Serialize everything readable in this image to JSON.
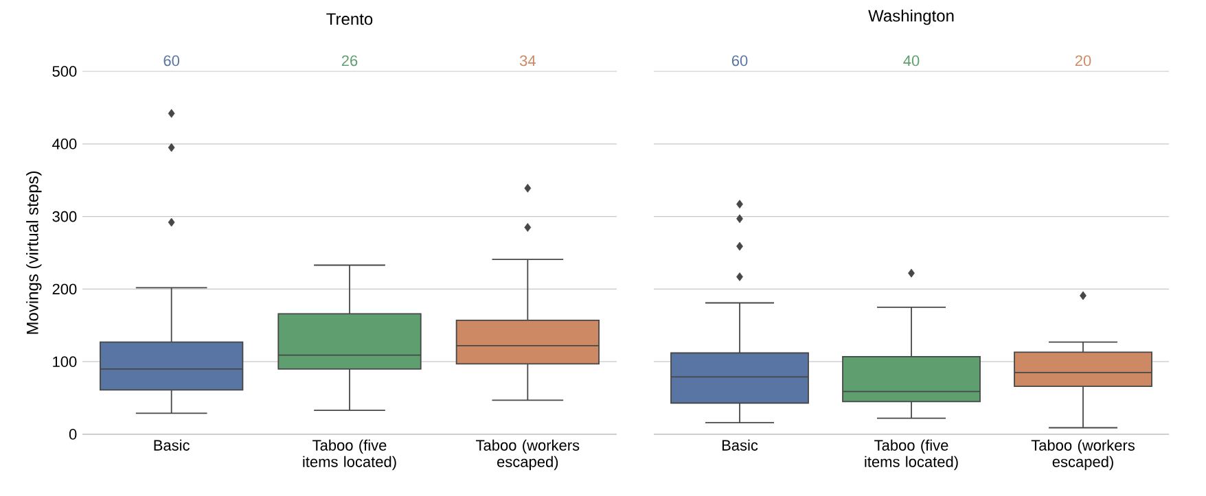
{
  "chart_data": [
    {
      "type": "box",
      "title": "Trento",
      "ylabel": "Movings (virtual steps)",
      "categories": [
        "Basic",
        "Taboo (five items located)",
        "Taboo (workers escaped)"
      ],
      "colors": [
        "#5875a4",
        "#5f9e6e",
        "#cc8963"
      ],
      "boxes": [
        {
          "low": 29,
          "q1": 61,
          "median": 90,
          "q3": 127,
          "high": 202,
          "outliers": [
            442,
            395,
            292
          ]
        },
        {
          "low": 33,
          "q1": 90,
          "median": 109,
          "q3": 166,
          "high": 233
        },
        {
          "low": 47,
          "q1": 97,
          "median": 122,
          "q3": 157,
          "high": 241,
          "outliers": [
            339,
            285
          ]
        }
      ],
      "annotations": [
        "60",
        "26",
        "34"
      ],
      "ylim": [
        0,
        500
      ],
      "yticks": [
        0,
        100,
        200,
        300,
        400,
        500
      ],
      "grid": "y",
      "marker": "diamond"
    },
    {
      "type": "box",
      "title": "Washington",
      "categories": [
        "Basic",
        "Taboo (five items located)",
        "Taboo (workers escaped)"
      ],
      "colors": [
        "#5875a4",
        "#5f9e6e",
        "#cc8963"
      ],
      "boxes": [
        {
          "low": 16,
          "q1": 43,
          "median": 79,
          "q3": 112,
          "high": 181,
          "outliers": [
            317,
            297,
            259,
            217
          ]
        },
        {
          "low": 22,
          "q1": 45,
          "median": 59,
          "q3": 107,
          "high": 175,
          "outliers": [
            222
          ]
        },
        {
          "low": 9,
          "q1": 66,
          "median": 85,
          "q3": 113,
          "high": 127,
          "outliers": [
            191
          ]
        }
      ],
      "annotations": [
        "60",
        "40",
        "20"
      ],
      "ylim": [
        0,
        500
      ],
      "yticks": [
        0,
        100,
        200,
        300,
        400,
        500
      ],
      "grid": "y",
      "marker": "diamond",
      "tick_labels": "x"
    }
  ]
}
